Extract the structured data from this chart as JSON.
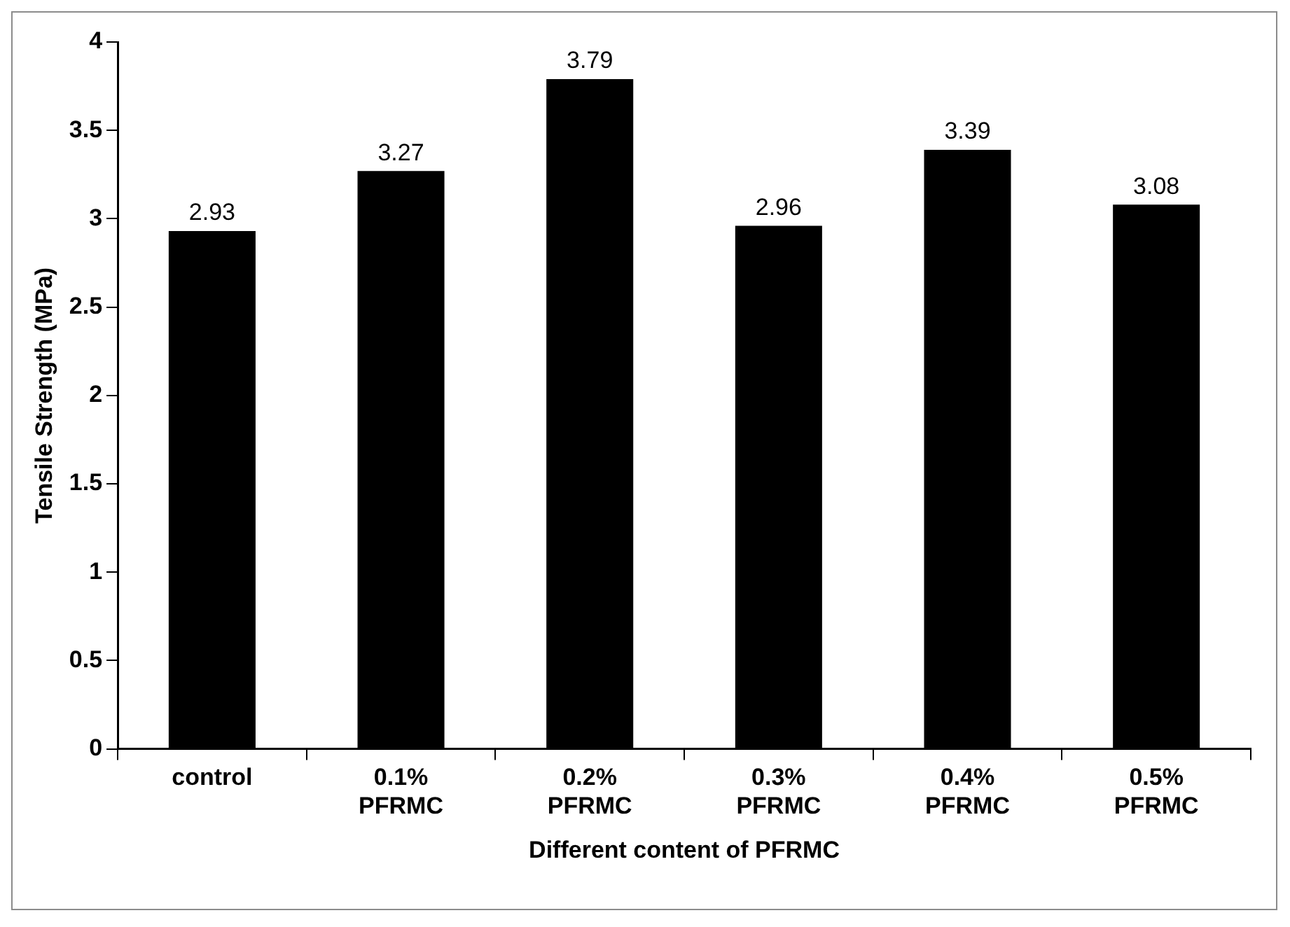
{
  "chart_data": {
    "type": "bar",
    "xlabel": "Different content of PFRMC",
    "ylabel": "Tensile Strength (MPa)",
    "categories": [
      "control",
      "0.1%\nPFRMC",
      "0.2%\nPFRMC",
      "0.3%\nPFRMC",
      "0.4%\nPFRMC",
      "0.5%\nPFRMC"
    ],
    "values": [
      2.93,
      3.27,
      3.79,
      2.96,
      3.39,
      3.08
    ],
    "color": "#000000",
    "ylim": [
      0,
      4
    ],
    "yticks": [
      0,
      0.5,
      1,
      1.5,
      2,
      2.5,
      3,
      3.5,
      4
    ],
    "grid": false,
    "legend": false,
    "data_labels": true
  }
}
